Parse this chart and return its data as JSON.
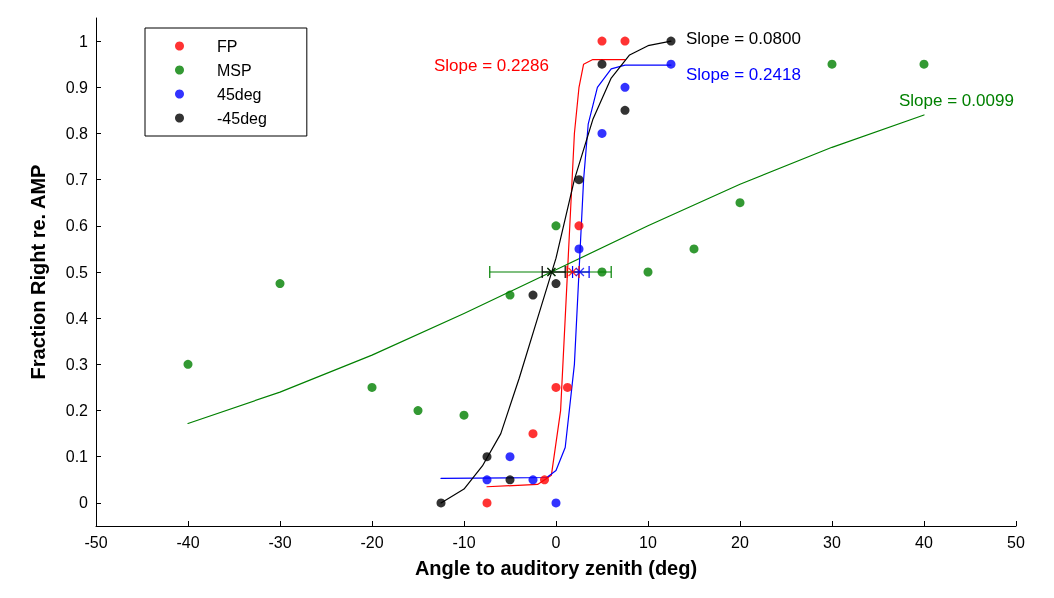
{
  "chart_data": {
    "type": "scatter",
    "xlabel": "Angle to auditory zenith (deg)",
    "ylabel": "Fraction Right re. AMP",
    "xlim": [
      -50,
      50
    ],
    "xticks": [
      -50,
      -40,
      -30,
      -20,
      -10,
      0,
      10,
      20,
      30,
      40,
      50
    ],
    "ylim": [
      -0.05,
      1.05
    ],
    "yticks": [
      0,
      0.1,
      0.2,
      0.3,
      0.4,
      0.5,
      0.6,
      0.7,
      0.8,
      0.9,
      1
    ],
    "grid": false,
    "legend": "top left",
    "marker": "circle",
    "series": [
      {
        "name": "FP",
        "color": "#ff0000",
        "x": [
          -7.5,
          -2.5,
          -1.25,
          0,
          1.25,
          2.5,
          5,
          7.5
        ],
        "values": [
          0,
          0.15,
          0.05,
          0.25,
          0.25,
          0.6,
          1,
          1
        ]
      },
      {
        "name": "MSP",
        "color": "#008000",
        "x": [
          -40,
          -30,
          -20,
          -15,
          -10,
          -5,
          0,
          5,
          10,
          15,
          20,
          30,
          40
        ],
        "values": [
          0.3,
          0.475,
          0.25,
          0.2,
          0.19,
          0.45,
          0.6,
          0.5,
          0.5,
          0.55,
          0.65,
          0.95,
          0.95
        ]
      },
      {
        "name": "45deg",
        "color": "#0000ff",
        "x": [
          -7.5,
          -5,
          -2.5,
          0,
          2.5,
          5,
          7.5,
          12.5
        ],
        "values": [
          0.05,
          0.1,
          0.05,
          0,
          0.55,
          0.8,
          0.9,
          0.95
        ]
      },
      {
        "name": "-45deg",
        "color": "#000000",
        "x": [
          -12.5,
          -7.5,
          -5,
          -2.5,
          0,
          2.5,
          5,
          7.5,
          12.5
        ],
        "values": [
          0,
          0.1,
          0.05,
          0.45,
          0.475,
          0.7,
          0.95,
          0.85,
          1
        ]
      },
      {
        "type": "line",
        "color": "#ff0000",
        "marker": "none",
        "x": [
          -7.5,
          -2,
          -0.5,
          0.5,
          1,
          1.5,
          2,
          2.5,
          3,
          4,
          7.5
        ],
        "values": [
          0.035,
          0.04,
          0.06,
          0.2,
          0.4,
          0.6,
          0.8,
          0.9,
          0.95,
          0.96,
          0.96
        ]
      },
      {
        "type": "line",
        "color": "#008000",
        "marker": "none",
        "x": [
          -40,
          -30,
          -20,
          -10,
          0,
          10,
          20,
          30,
          40
        ],
        "values": [
          0.172,
          0.24,
          0.32,
          0.41,
          0.505,
          0.6,
          0.69,
          0.77,
          0.84
        ]
      },
      {
        "type": "line",
        "color": "#0000ff",
        "marker": "none",
        "x": [
          -12.5,
          -1,
          0,
          1,
          2,
          2.5,
          3,
          3.5,
          4.5,
          6,
          7.5,
          12.5
        ],
        "values": [
          0.053,
          0.055,
          0.07,
          0.12,
          0.3,
          0.5,
          0.7,
          0.82,
          0.9,
          0.94,
          0.948,
          0.948
        ]
      },
      {
        "type": "line",
        "color": "#000000",
        "marker": "none",
        "x": [
          -12.5,
          -10,
          -8,
          -6,
          -4,
          -2,
          0,
          2,
          4,
          6,
          8,
          10,
          12.5
        ],
        "values": [
          0,
          0.03,
          0.08,
          0.15,
          0.27,
          0.4,
          0.53,
          0.7,
          0.83,
          0.92,
          0.97,
          0.99,
          1
        ]
      },
      {
        "type": "scatter",
        "color": "#ff0000",
        "marker": "cross",
        "x": [
          1.8
        ],
        "values": [
          0.5
        ],
        "xerrors": [
          [
            1.2,
            2.5
          ]
        ]
      },
      {
        "type": "scatter",
        "color": "#008000",
        "marker": "cross",
        "x": [
          -0.5
        ],
        "values": [
          0.5
        ],
        "xerrors": [
          [
            -7.2,
            6
          ]
        ]
      },
      {
        "type": "scatter",
        "color": "#0000ff",
        "marker": "cross",
        "x": [
          2.6
        ],
        "values": [
          0.5
        ],
        "xerrors": [
          [
            1.8,
            3.6
          ]
        ]
      },
      {
        "type": "scatter",
        "color": "#000000",
        "marker": "cross",
        "x": [
          -0.5
        ],
        "values": [
          0.5
        ],
        "xerrors": [
          [
            -1.5,
            1
          ]
        ]
      }
    ],
    "annotations": [
      "Slope = 0.2286",
      "Slope = 0.0099",
      "Slope = 0.2418",
      "Slope = 0.0800"
    ]
  }
}
